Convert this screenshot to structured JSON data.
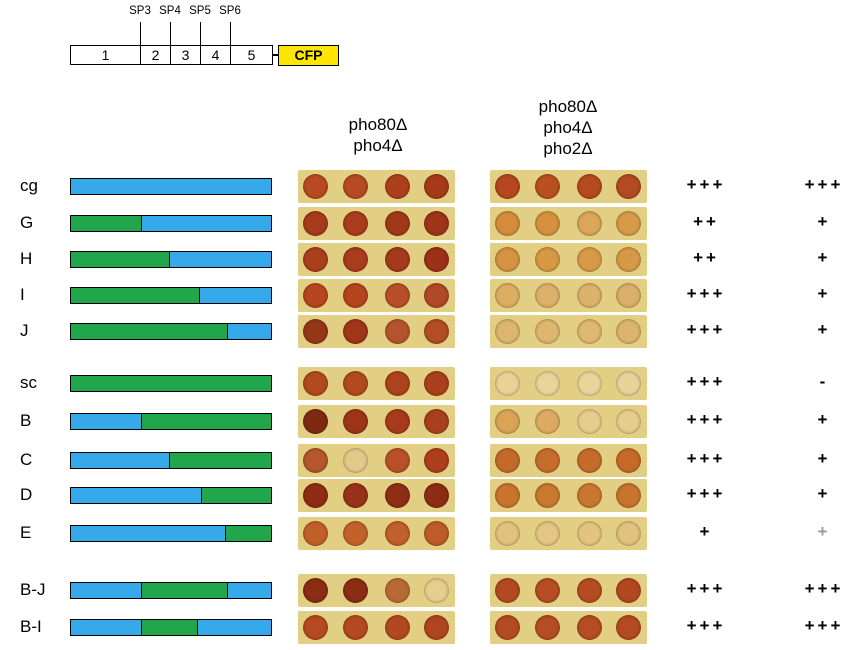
{
  "colors": {
    "blue": "#36a9ea",
    "green": "#21a64b",
    "cfp": "#ffe600"
  },
  "construct": {
    "segments": [
      "1",
      "2",
      "3",
      "4",
      "5"
    ],
    "sites": [
      "SP3",
      "SP4",
      "SP5",
      "SP6"
    ],
    "tag": "CFP"
  },
  "headers": {
    "col1_line1": "pho80Δ",
    "col1_line2": "pho4Δ",
    "col2_line1": "pho80Δ",
    "col2_line2": "pho4Δ",
    "col2_line3": "pho2Δ"
  },
  "rows": [
    {
      "label": "cg",
      "pattern": [
        "blue"
      ],
      "score1": "+++",
      "score2": "+++",
      "spots1": [
        "#b84a22",
        "#b64a22",
        "#ad401c",
        "#a53a18"
      ],
      "spots2": [
        "#b5481f",
        "#b8501f",
        "#b44a1f",
        "#b34a21"
      ]
    },
    {
      "label": "G",
      "pattern": [
        "green",
        "blue"
      ],
      "score1": "++",
      "score2": "+",
      "spots1": [
        "#a63a1c",
        "#a93c1c",
        "#a2381a",
        "#9e3418"
      ],
      "spots2": [
        "#d38c3a",
        "#d5913e",
        "#d9a65a",
        "#d69a48"
      ]
    },
    {
      "label": "H",
      "pattern": [
        "green",
        "blue"
      ],
      "score1": "++",
      "score2": "+",
      "spots1": [
        "#aa3f1d",
        "#a83c1c",
        "#a4391b",
        "#9b3119"
      ],
      "spots2": [
        "#d49342",
        "#d69944",
        "#d79b47",
        "#d69a47"
      ]
    },
    {
      "label": "I",
      "pattern": [
        "green",
        "blue"
      ],
      "score1": "+++",
      "score2": "+",
      "spots1": [
        "#b6461f",
        "#b3441e",
        "#b84f2a",
        "#b14828"
      ],
      "spots2": [
        "#dcae63",
        "#ddb169",
        "#ddb36c",
        "#dbb06a"
      ]
    },
    {
      "label": "J",
      "pattern": [
        "green",
        "blue"
      ],
      "score1": "+++",
      "score2": "+",
      "spots1": [
        "#953616",
        "#9f3618",
        "#b5542c",
        "#b24d24"
      ],
      "spots2": [
        "#ddb66e",
        "#deb76f",
        "#dfb872",
        "#ddb46c"
      ]
    },
    {
      "label": "sc",
      "pattern": [
        "green"
      ],
      "score1": "+++",
      "score2": "-",
      "spots1": [
        "#b14a1f",
        "#b14a1f",
        "#ad431d",
        "#aa401c"
      ],
      "spots2": [
        "#e8d296",
        "#e9d49a",
        "#e9d59c",
        "#e8d399"
      ]
    },
    {
      "label": "B",
      "pattern": [
        "blue",
        "green"
      ],
      "score1": "+++",
      "score2": "+",
      "spots1": [
        "#7e2a12",
        "#9d3418",
        "#a73a1a",
        "#a8401d"
      ],
      "spots2": [
        "#daa457",
        "#dcab61",
        "#e6cd8d",
        "#e6cd8d"
      ]
    },
    {
      "label": "C",
      "pattern": [
        "blue",
        "green"
      ],
      "score1": "+++",
      "score2": "+",
      "spots1": [
        "#b5562c",
        "#e2c889",
        "#b8502a",
        "#ae3f1d"
      ],
      "spots2": [
        "#c46a28",
        "#c76d2b",
        "#c66c2a",
        "#c56a29"
      ]
    },
    {
      "label": "D",
      "pattern": [
        "blue",
        "green"
      ],
      "score1": "+++",
      "score2": "+",
      "spots1": [
        "#8e2d14",
        "#98321a",
        "#8f2e15",
        "#8c2c14"
      ],
      "spots2": [
        "#c8742d",
        "#c9782f",
        "#c97730",
        "#c8742e"
      ]
    },
    {
      "label": "E",
      "pattern": [
        "blue",
        "green"
      ],
      "score1": "+",
      "score2": "+",
      "spots1": [
        "#c05f28",
        "#c2622a",
        "#c0602a",
        "#bc5c28"
      ],
      "spots2": [
        "#e3c27c",
        "#e4c683",
        "#e3c47f",
        "#e2c27d"
      ]
    },
    {
      "label": "B-J",
      "pattern": [
        "blue",
        "green",
        "blue"
      ],
      "score1": "+++",
      "score2": "+++",
      "spots1": [
        "#8a2d12",
        "#8a2d13",
        "#b86a36",
        "#e5cf8f"
      ],
      "spots2": [
        "#b24a20",
        "#b74d22",
        "#b64b22",
        "#b24820"
      ]
    },
    {
      "label": "B-I",
      "pattern": [
        "blue",
        "green",
        "blue"
      ],
      "score1": "+++",
      "score2": "+++",
      "spots1": [
        "#b54a20",
        "#b34920",
        "#b24820",
        "#af4520"
      ],
      "spots2": [
        "#b34b22",
        "#b54d23",
        "#b54c22",
        "#b34a21"
      ]
    }
  ]
}
